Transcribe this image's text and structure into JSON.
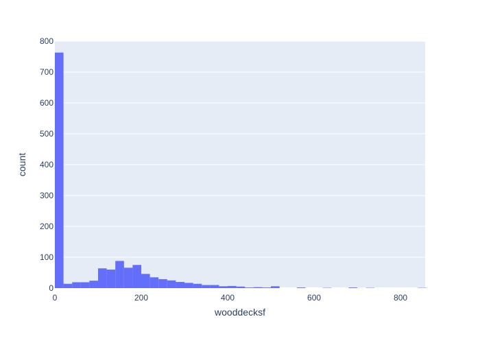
{
  "chart_data": {
    "type": "bar",
    "title": "",
    "xlabel": "wooddecksf",
    "ylabel": "count",
    "xlim": [
      0,
      857
    ],
    "ylim": [
      0,
      800
    ],
    "x_ticks": [
      0,
      200,
      400,
      600,
      800
    ],
    "y_ticks": [
      0,
      100,
      200,
      300,
      400,
      500,
      600,
      700,
      800
    ],
    "bin_width": 20,
    "bin_starts": [
      0,
      20,
      40,
      60,
      80,
      100,
      120,
      140,
      160,
      180,
      200,
      220,
      240,
      260,
      280,
      300,
      320,
      340,
      360,
      380,
      400,
      420,
      440,
      460,
      480,
      500,
      520,
      540,
      560,
      580,
      600,
      620,
      640,
      660,
      680,
      700,
      720,
      740,
      760,
      780,
      800,
      820,
      840
    ],
    "values": [
      763,
      14,
      19,
      19,
      24,
      64,
      60,
      88,
      66,
      75,
      46,
      35,
      29,
      25,
      20,
      17,
      14,
      10,
      10,
      6,
      7,
      5,
      2,
      3,
      2,
      6,
      0,
      0,
      2,
      0,
      0,
      1,
      0,
      0,
      2,
      0,
      1,
      0,
      0,
      0,
      0,
      0,
      1
    ],
    "bar_color": "#636efa",
    "plot_bg": "#e5ecf6",
    "grid": true
  }
}
